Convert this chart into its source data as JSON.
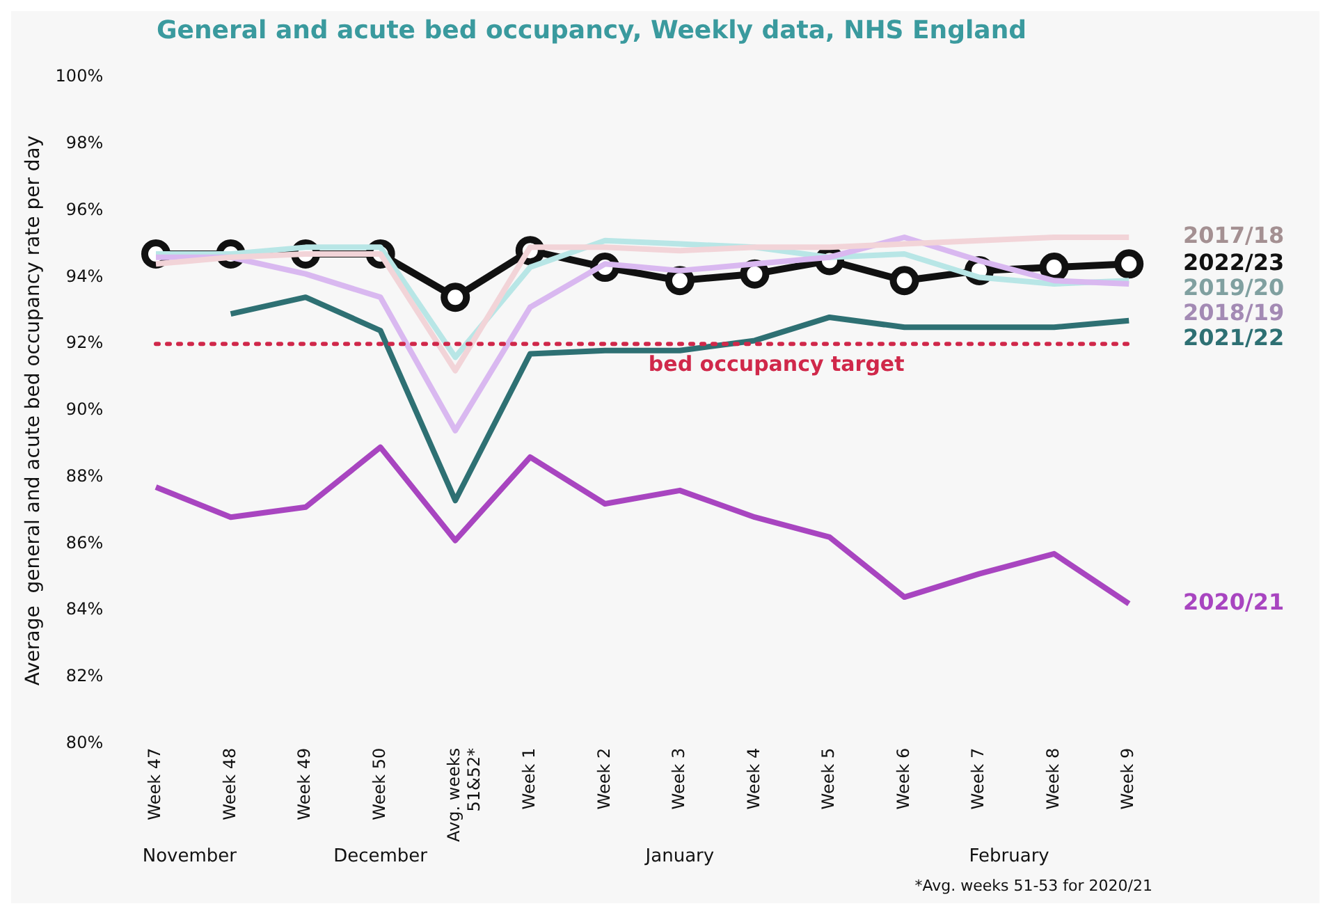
{
  "chart_data": {
    "type": "line",
    "title": "General and acute bed occupancy, Weekly data, NHS England",
    "ylabel": "Average  general and acute bed occupancy rate per day",
    "categories": [
      "Week 47",
      "Week 48",
      "Week 49",
      "Week 50",
      "Avg. weeks 51&52*",
      "Week 1",
      "Week 2",
      "Week 3",
      "Week 4",
      "Week 5",
      "Week 6",
      "Week 7",
      "Week 8",
      "Week 9"
    ],
    "series": [
      {
        "name": "2017/18",
        "color": "#f2d4d8",
        "marker": "none",
        "values": [
          94.4,
          94.6,
          94.7,
          94.7,
          91.2,
          94.9,
          94.9,
          94.8,
          94.9,
          94.9,
          95.0,
          95.1,
          95.2,
          95.2
        ]
      },
      {
        "name": "2018/19",
        "color": "#d9b8f0",
        "marker": "none",
        "values": [
          94.6,
          94.6,
          94.1,
          93.4,
          89.4,
          93.1,
          94.4,
          94.2,
          94.4,
          94.6,
          95.2,
          94.5,
          93.9,
          93.8
        ]
      },
      {
        "name": "2019/20",
        "color": "#b8e6e6",
        "marker": "none",
        "values": [
          94.7,
          94.7,
          94.9,
          94.9,
          91.6,
          94.3,
          95.1,
          95.0,
          94.9,
          94.6,
          94.7,
          94.0,
          93.8,
          93.9
        ]
      },
      {
        "name": "2020/21",
        "color": "#a845c0",
        "marker": "none",
        "values": [
          87.7,
          86.8,
          87.1,
          88.9,
          86.1,
          88.6,
          87.2,
          87.6,
          86.8,
          86.2,
          84.4,
          85.1,
          85.7,
          84.2
        ]
      },
      {
        "name": "2021/22",
        "color": "#2e7073",
        "marker": "none",
        "values": [
          null,
          92.9,
          93.4,
          92.4,
          87.3,
          91.7,
          91.8,
          91.8,
          92.1,
          92.8,
          92.5,
          92.5,
          92.5,
          92.7
        ]
      },
      {
        "name": "2022/23",
        "color": "#111111",
        "marker": "circle",
        "values": [
          94.7,
          94.7,
          94.7,
          94.7,
          93.4,
          94.8,
          94.3,
          93.9,
          94.1,
          94.5,
          93.9,
          94.2,
          94.3,
          94.4
        ]
      }
    ],
    "ylim": [
      80,
      100
    ],
    "yticks": [
      {
        "value": 80,
        "label": "80%"
      },
      {
        "value": 82,
        "label": "82%"
      },
      {
        "value": 84,
        "label": "84%"
      },
      {
        "value": 86,
        "label": "86%"
      },
      {
        "value": 88,
        "label": "88%"
      },
      {
        "value": 90,
        "label": "90%"
      },
      {
        "value": 92,
        "label": "92%"
      },
      {
        "value": 94,
        "label": "94%"
      },
      {
        "value": 96,
        "label": "96%"
      },
      {
        "value": 98,
        "label": "98%"
      },
      {
        "value": 100,
        "label": "100%"
      }
    ],
    "ref_lines": [
      {
        "axis": "y",
        "value": 92,
        "label": "bed occupancy target",
        "color": "#d0284a",
        "line_style": "dotted"
      }
    ],
    "annotations": [
      "November",
      "December",
      "January",
      "February",
      "*Avg. weeks 51-53 for 2020/21"
    ],
    "grid": false,
    "legend": false,
    "line_style": "solid"
  }
}
